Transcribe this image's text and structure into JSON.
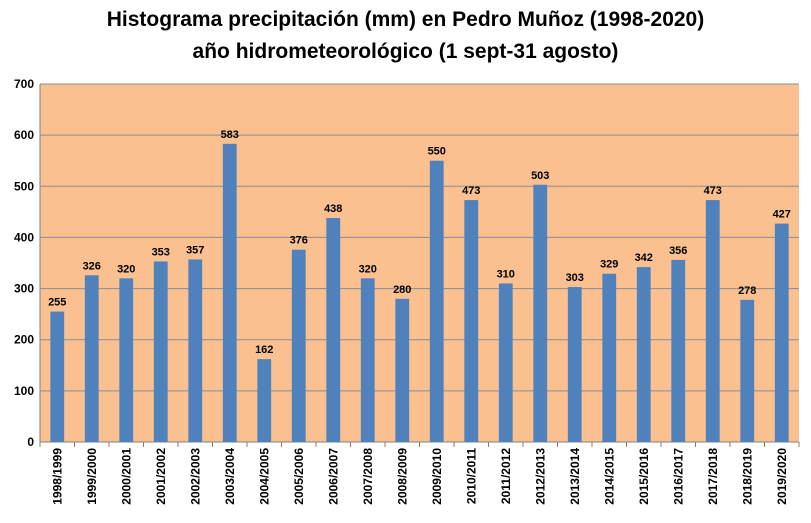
{
  "title_line1": "Histograma precipitación (mm) en Pedro Muñoz (1998-2020)",
  "title_line2": "año hidrometeorológico (1 sept-31 agosto)",
  "colors": {
    "plot_background": "#FAC090",
    "bar": "#4F81BD",
    "gridline": "#8C8C8C"
  },
  "chart_data": {
    "type": "bar",
    "title": "Histograma precipitación (mm) en Pedro Muñoz (1998-2020) año hidrometeorológico (1 sept-31 agosto)",
    "xlabel": "",
    "ylabel": "",
    "ylim": [
      0,
      700
    ],
    "yticks": [
      0,
      100,
      200,
      300,
      400,
      500,
      600,
      700
    ],
    "grid": true,
    "legend": "none",
    "categories": [
      "1998/1999",
      "1999/2000",
      "2000/2001",
      "2001/2002",
      "2002/2003",
      "2003/2004",
      "2004/2005",
      "2005/2006",
      "2006/2007",
      "2007/2008",
      "2008/2009",
      "2009/2010",
      "2010/2011",
      "2011/2012",
      "2012/2013",
      "2013/2014",
      "2014/2015",
      "2015/2016",
      "2016/2017",
      "2017/2018",
      "2018/2019",
      "2019/2020"
    ],
    "values": [
      255,
      326,
      320,
      353,
      357,
      583,
      162,
      376,
      438,
      320,
      280,
      550,
      473,
      310,
      503,
      303,
      329,
      342,
      356,
      473,
      278,
      427
    ]
  }
}
